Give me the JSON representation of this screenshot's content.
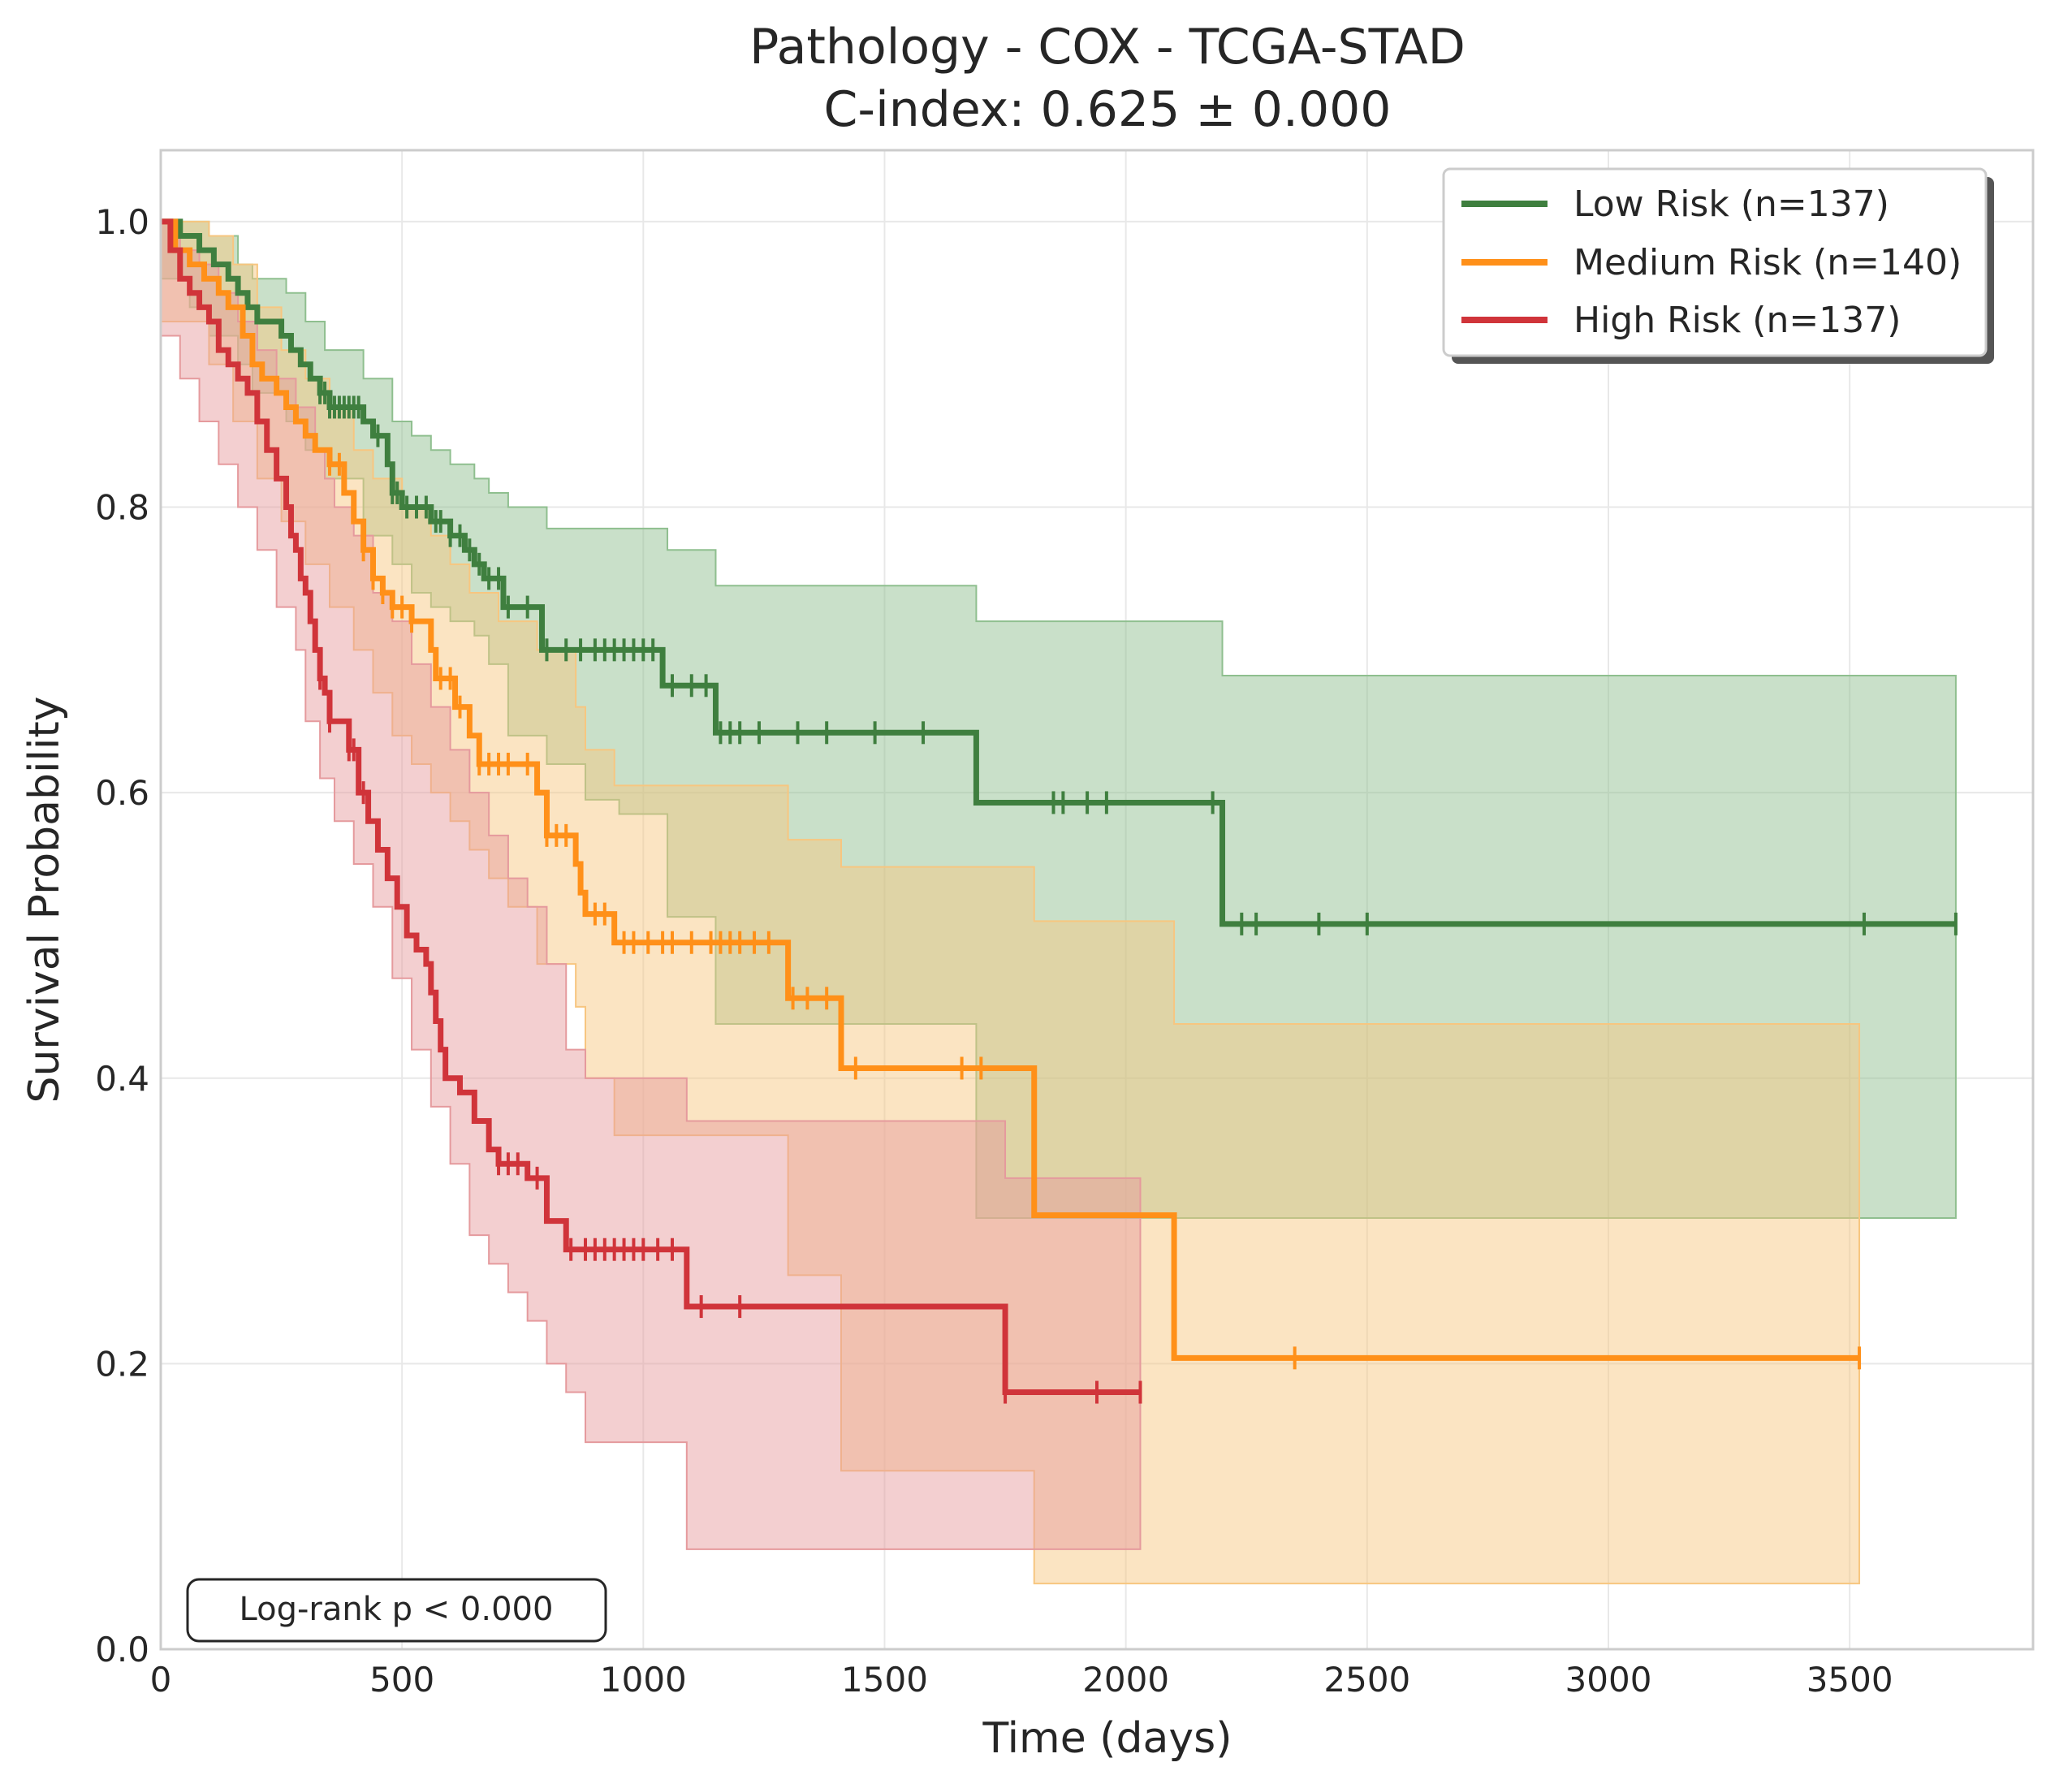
{
  "chart_data": {
    "type": "line",
    "subtype": "kaplan-meier step curves with confidence bands",
    "title": "Pathology - COX - TCGA-STAD",
    "subtitle": "C-index: 0.625 ± 0.000",
    "xlabel": "Time (days)",
    "ylabel": "Survival Probability",
    "xlim": [
      0,
      3880
    ],
    "ylim": [
      0,
      1.05
    ],
    "xticks": [
      0,
      500,
      1000,
      1500,
      2000,
      2500,
      3000,
      3500
    ],
    "xtick_labels": [
      "0",
      "500",
      "1000",
      "1500",
      "2000",
      "2500",
      "3000",
      "3500"
    ],
    "yticks": [
      0,
      0.2,
      0.4,
      0.6,
      0.8,
      1.0
    ],
    "ytick_labels": [
      "0.0",
      "0.2",
      "0.4",
      "0.6",
      "0.8",
      "1.0"
    ],
    "grid": true,
    "legend_position": "top-right",
    "annotation": "Log-rank p < 0.000",
    "series": [
      {
        "name": "Low Risk (n=137)",
        "color": "#3f7f3f",
        "band_color": "#8fbf8f",
        "steps": [
          [
            0,
            1.0
          ],
          [
            40,
            0.99
          ],
          [
            80,
            0.98
          ],
          [
            110,
            0.97
          ],
          [
            140,
            0.96
          ],
          [
            160,
            0.95
          ],
          [
            180,
            0.94
          ],
          [
            200,
            0.93
          ],
          [
            250,
            0.92
          ],
          [
            270,
            0.91
          ],
          [
            290,
            0.9
          ],
          [
            310,
            0.89
          ],
          [
            330,
            0.88
          ],
          [
            350,
            0.87
          ],
          [
            420,
            0.86
          ],
          [
            440,
            0.85
          ],
          [
            470,
            0.83
          ],
          [
            480,
            0.81
          ],
          [
            500,
            0.8
          ],
          [
            560,
            0.79
          ],
          [
            600,
            0.78
          ],
          [
            630,
            0.77
          ],
          [
            650,
            0.76
          ],
          [
            670,
            0.75
          ],
          [
            710,
            0.73
          ],
          [
            790,
            0.7
          ],
          [
            1040,
            0.675
          ],
          [
            1150,
            0.642
          ],
          [
            1690,
            0.593
          ],
          [
            2200,
            0.508
          ],
          [
            3720,
            0.508
          ]
        ],
        "ci_upper": [
          [
            0,
            1.0
          ],
          [
            60,
            1.0
          ],
          [
            100,
            0.99
          ],
          [
            160,
            0.97
          ],
          [
            190,
            0.96
          ],
          [
            260,
            0.95
          ],
          [
            300,
            0.93
          ],
          [
            340,
            0.91
          ],
          [
            420,
            0.89
          ],
          [
            480,
            0.86
          ],
          [
            520,
            0.85
          ],
          [
            560,
            0.84
          ],
          [
            600,
            0.83
          ],
          [
            650,
            0.82
          ],
          [
            680,
            0.81
          ],
          [
            720,
            0.8
          ],
          [
            800,
            0.785
          ],
          [
            1050,
            0.77
          ],
          [
            1150,
            0.745
          ],
          [
            1690,
            0.72
          ],
          [
            2200,
            0.682
          ],
          [
            3720,
            0.682
          ]
        ],
        "ci_lower": [
          [
            0,
            0.98
          ],
          [
            60,
            0.96
          ],
          [
            100,
            0.94
          ],
          [
            160,
            0.92
          ],
          [
            190,
            0.9
          ],
          [
            260,
            0.88
          ],
          [
            300,
            0.86
          ],
          [
            340,
            0.84
          ],
          [
            420,
            0.82
          ],
          [
            480,
            0.78
          ],
          [
            520,
            0.76
          ],
          [
            560,
            0.74
          ],
          [
            600,
            0.73
          ],
          [
            650,
            0.72
          ],
          [
            680,
            0.71
          ],
          [
            720,
            0.69
          ],
          [
            800,
            0.64
          ],
          [
            880,
            0.62
          ],
          [
            950,
            0.595
          ],
          [
            1050,
            0.585
          ],
          [
            1150,
            0.513
          ],
          [
            1690,
            0.438
          ],
          [
            2200,
            0.302
          ],
          [
            3720,
            0.302
          ]
        ],
        "censor_times": [
          330,
          340,
          350,
          360,
          370,
          380,
          390,
          400,
          410,
          450,
          480,
          490,
          510,
          530,
          550,
          570,
          580,
          600,
          620,
          640,
          660,
          680,
          700,
          720,
          760,
          800,
          840,
          870,
          900,
          920,
          940,
          960,
          980,
          1000,
          1020,
          1060,
          1100,
          1130,
          1160,
          1180,
          1200,
          1240,
          1320,
          1380,
          1480,
          1580,
          1850,
          1870,
          1920,
          1960,
          2180,
          2240,
          2270,
          2400,
          2500,
          3530,
          3720
        ]
      },
      {
        "name": "Medium Risk (n=140)",
        "color": "#ff9019",
        "band_color": "#f7c680",
        "steps": [
          [
            0,
            1.0
          ],
          [
            30,
            0.98
          ],
          [
            60,
            0.97
          ],
          [
            90,
            0.96
          ],
          [
            120,
            0.95
          ],
          [
            140,
            0.94
          ],
          [
            170,
            0.92
          ],
          [
            190,
            0.9
          ],
          [
            210,
            0.89
          ],
          [
            240,
            0.88
          ],
          [
            260,
            0.87
          ],
          [
            280,
            0.86
          ],
          [
            300,
            0.85
          ],
          [
            320,
            0.84
          ],
          [
            350,
            0.83
          ],
          [
            380,
            0.81
          ],
          [
            400,
            0.79
          ],
          [
            420,
            0.77
          ],
          [
            440,
            0.75
          ],
          [
            460,
            0.74
          ],
          [
            480,
            0.73
          ],
          [
            520,
            0.72
          ],
          [
            560,
            0.7
          ],
          [
            570,
            0.68
          ],
          [
            610,
            0.66
          ],
          [
            640,
            0.64
          ],
          [
            660,
            0.62
          ],
          [
            780,
            0.6
          ],
          [
            800,
            0.57
          ],
          [
            860,
            0.55
          ],
          [
            870,
            0.53
          ],
          [
            880,
            0.515
          ],
          [
            940,
            0.495
          ],
          [
            1300,
            0.456
          ],
          [
            1410,
            0.407
          ],
          [
            1810,
            0.304
          ],
          [
            2100,
            0.204
          ],
          [
            3520,
            0.204
          ]
        ],
        "ci_upper": [
          [
            0,
            1.0
          ],
          [
            30,
            1.0
          ],
          [
            100,
            0.99
          ],
          [
            150,
            0.97
          ],
          [
            200,
            0.94
          ],
          [
            250,
            0.91
          ],
          [
            300,
            0.89
          ],
          [
            350,
            0.87
          ],
          [
            400,
            0.84
          ],
          [
            440,
            0.82
          ],
          [
            500,
            0.8
          ],
          [
            560,
            0.78
          ],
          [
            600,
            0.76
          ],
          [
            640,
            0.74
          ],
          [
            700,
            0.72
          ],
          [
            780,
            0.7
          ],
          [
            860,
            0.66
          ],
          [
            880,
            0.63
          ],
          [
            940,
            0.605
          ],
          [
            1300,
            0.567
          ],
          [
            1410,
            0.548
          ],
          [
            1810,
            0.51
          ],
          [
            2100,
            0.438
          ],
          [
            3520,
            0.438
          ]
        ],
        "ci_lower": [
          [
            0,
            0.96
          ],
          [
            100,
            0.93
          ],
          [
            150,
            0.9
          ],
          [
            200,
            0.86
          ],
          [
            250,
            0.82
          ],
          [
            300,
            0.79
          ],
          [
            350,
            0.76
          ],
          [
            400,
            0.73
          ],
          [
            440,
            0.7
          ],
          [
            480,
            0.67
          ],
          [
            520,
            0.64
          ],
          [
            560,
            0.62
          ],
          [
            600,
            0.6
          ],
          [
            640,
            0.58
          ],
          [
            680,
            0.56
          ],
          [
            720,
            0.54
          ],
          [
            780,
            0.52
          ],
          [
            860,
            0.48
          ],
          [
            880,
            0.45
          ],
          [
            940,
            0.4
          ],
          [
            1300,
            0.36
          ],
          [
            1410,
            0.262
          ],
          [
            1810,
            0.125
          ],
          [
            2100,
            0.046
          ],
          [
            3520,
            0.046
          ]
        ],
        "censor_times": [
          350,
          370,
          420,
          440,
          460,
          480,
          500,
          520,
          580,
          600,
          620,
          660,
          680,
          700,
          720,
          760,
          800,
          820,
          840,
          900,
          920,
          960,
          980,
          1010,
          1040,
          1060,
          1100,
          1140,
          1160,
          1180,
          1200,
          1230,
          1260,
          1310,
          1340,
          1380,
          1440,
          1660,
          1700,
          2350,
          3520
        ]
      },
      {
        "name": "High Risk (n=137)",
        "color": "#d0343a",
        "band_color": "#e59a9d",
        "steps": [
          [
            0,
            1.0
          ],
          [
            20,
            0.98
          ],
          [
            40,
            0.96
          ],
          [
            60,
            0.95
          ],
          [
            80,
            0.94
          ],
          [
            100,
            0.93
          ],
          [
            120,
            0.91
          ],
          [
            140,
            0.9
          ],
          [
            160,
            0.89
          ],
          [
            180,
            0.88
          ],
          [
            200,
            0.86
          ],
          [
            220,
            0.84
          ],
          [
            240,
            0.82
          ],
          [
            260,
            0.8
          ],
          [
            270,
            0.78
          ],
          [
            280,
            0.77
          ],
          [
            290,
            0.75
          ],
          [
            300,
            0.74
          ],
          [
            310,
            0.72
          ],
          [
            320,
            0.7
          ],
          [
            330,
            0.68
          ],
          [
            340,
            0.67
          ],
          [
            350,
            0.65
          ],
          [
            390,
            0.63
          ],
          [
            410,
            0.6
          ],
          [
            430,
            0.58
          ],
          [
            450,
            0.56
          ],
          [
            470,
            0.54
          ],
          [
            490,
            0.52
          ],
          [
            510,
            0.5
          ],
          [
            530,
            0.49
          ],
          [
            550,
            0.48
          ],
          [
            560,
            0.46
          ],
          [
            570,
            0.44
          ],
          [
            580,
            0.42
          ],
          [
            590,
            0.4
          ],
          [
            620,
            0.39
          ],
          [
            650,
            0.37
          ],
          [
            680,
            0.35
          ],
          [
            700,
            0.34
          ],
          [
            760,
            0.33
          ],
          [
            800,
            0.3
          ],
          [
            840,
            0.28
          ],
          [
            1090,
            0.24
          ],
          [
            1750,
            0.18
          ],
          [
            2030,
            0.18
          ]
        ],
        "ci_upper": [
          [
            0,
            1.0
          ],
          [
            40,
            0.98
          ],
          [
            80,
            0.97
          ],
          [
            120,
            0.95
          ],
          [
            160,
            0.93
          ],
          [
            200,
            0.91
          ],
          [
            240,
            0.89
          ],
          [
            280,
            0.87
          ],
          [
            320,
            0.84
          ],
          [
            340,
            0.82
          ],
          [
            360,
            0.8
          ],
          [
            400,
            0.78
          ],
          [
            440,
            0.74
          ],
          [
            480,
            0.72
          ],
          [
            520,
            0.69
          ],
          [
            560,
            0.66
          ],
          [
            600,
            0.63
          ],
          [
            640,
            0.6
          ],
          [
            680,
            0.57
          ],
          [
            720,
            0.54
          ],
          [
            760,
            0.52
          ],
          [
            800,
            0.48
          ],
          [
            840,
            0.42
          ],
          [
            880,
            0.4
          ],
          [
            1090,
            0.37
          ],
          [
            1750,
            0.33
          ],
          [
            2030,
            0.33
          ]
        ],
        "ci_lower": [
          [
            0,
            0.94
          ],
          [
            40,
            0.92
          ],
          [
            80,
            0.89
          ],
          [
            120,
            0.86
          ],
          [
            160,
            0.83
          ],
          [
            200,
            0.8
          ],
          [
            240,
            0.77
          ],
          [
            280,
            0.73
          ],
          [
            300,
            0.7
          ],
          [
            330,
            0.65
          ],
          [
            360,
            0.61
          ],
          [
            400,
            0.58
          ],
          [
            440,
            0.55
          ],
          [
            480,
            0.52
          ],
          [
            520,
            0.47
          ],
          [
            560,
            0.42
          ],
          [
            600,
            0.38
          ],
          [
            640,
            0.34
          ],
          [
            680,
            0.29
          ],
          [
            720,
            0.27
          ],
          [
            760,
            0.25
          ],
          [
            800,
            0.23
          ],
          [
            840,
            0.2
          ],
          [
            880,
            0.18
          ],
          [
            1090,
            0.145
          ],
          [
            1750,
            0.07
          ],
          [
            2030,
            0.07
          ]
        ],
        "censor_times": [
          330,
          350,
          390,
          400,
          420,
          700,
          720,
          740,
          780,
          850,
          880,
          900,
          920,
          940,
          960,
          980,
          1000,
          1030,
          1060,
          1120,
          1200,
          1750,
          1940,
          2030
        ]
      }
    ]
  }
}
